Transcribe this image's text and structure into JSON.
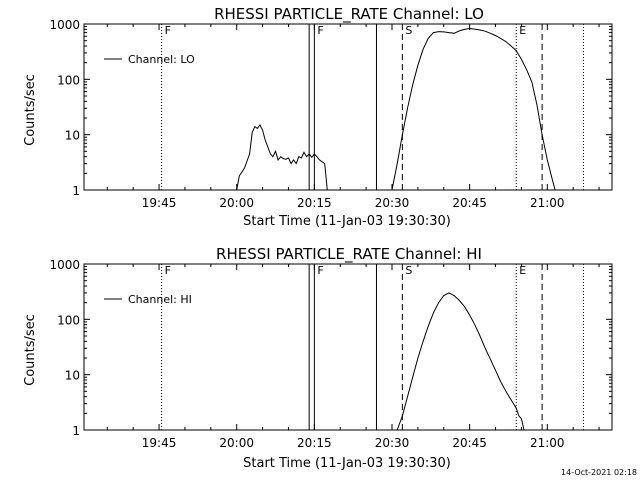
{
  "footer": "14-Oct-2021 02:18",
  "chart_data": [
    {
      "type": "line",
      "title": "RHESSI PARTICLE_RATE Channel: LO",
      "xlabel": "Start Time (11-Jan-03 19:30:30)",
      "ylabel": "Counts/sec",
      "legend": "Channel: LO",
      "legend_position": "top-left",
      "yscale": "log",
      "ylim": [
        1,
        1000
      ],
      "xlim": [
        "19:30:30",
        "21:12:30"
      ],
      "x_ticks": [
        "19:45",
        "20:00",
        "20:15",
        "20:30",
        "20:45",
        "21:00"
      ],
      "y_ticks": [
        "1",
        "10",
        "100",
        "1000"
      ],
      "grid": false,
      "markers": [
        {
          "time": "19:45:30",
          "style": "dotted",
          "label": "F"
        },
        {
          "time": "20:14:00",
          "style": "solid",
          "label": ""
        },
        {
          "time": "20:15:00",
          "style": "solid",
          "label": "F"
        },
        {
          "time": "20:27:00",
          "style": "solid",
          "label": ""
        },
        {
          "time": "20:32:00",
          "style": "dashed",
          "label": "S"
        },
        {
          "time": "20:54:00",
          "style": "dotted",
          "label": "E"
        },
        {
          "time": "20:59:00",
          "style": "dashed",
          "label": ""
        },
        {
          "time": "21:07:00",
          "style": "dotted",
          "label": ""
        }
      ],
      "series": [
        {
          "x": [
            "20:00:00",
            "20:00:30",
            "20:01:30",
            "20:02:30",
            "20:03:00",
            "20:03:30",
            "20:04:00",
            "20:04:30",
            "20:05:00",
            "20:05:30",
            "20:06:00",
            "20:06:30",
            "20:07:00",
            "20:07:30",
            "20:08:00",
            "20:08:30",
            "20:09:00",
            "20:09:30",
            "20:10:00",
            "20:10:30",
            "20:11:00",
            "20:11:30",
            "20:12:00",
            "20:12:30",
            "20:13:00",
            "20:13:30",
            "20:14:00",
            "20:14:30",
            "20:15:00",
            "20:15:30",
            "20:16:00",
            "20:17:00",
            "20:17:30"
          ],
          "values": [
            1,
            1.8,
            2.5,
            4.5,
            11,
            14,
            13,
            15,
            12,
            8,
            6,
            4.5,
            4,
            5,
            3.5,
            4,
            3.7,
            3.6,
            3.8,
            3,
            3.5,
            3,
            4,
            3.8,
            4.8,
            4,
            4.5,
            3.9,
            4.5,
            4,
            3.5,
            3,
            1
          ]
        },
        {
          "x": [
            "20:30:00",
            "20:31:00",
            "20:32:00",
            "20:33:00",
            "20:34:00",
            "20:35:00",
            "20:36:00",
            "20:37:00",
            "20:38:00",
            "20:39:00",
            "20:40:00",
            "20:41:00",
            "20:42:00",
            "20:43:00",
            "20:44:00",
            "20:45:00",
            "20:46:00",
            "20:47:00",
            "20:48:00",
            "20:49:00",
            "20:50:00",
            "20:51:00",
            "20:52:00",
            "20:53:00",
            "20:54:00",
            "20:55:00",
            "20:56:00",
            "20:57:00",
            "20:58:00",
            "20:59:00",
            "21:00:00",
            "21:01:00",
            "21:01:30"
          ],
          "values": [
            1,
            3,
            10,
            30,
            80,
            180,
            350,
            550,
            700,
            730,
            720,
            700,
            680,
            750,
            800,
            830,
            810,
            780,
            740,
            680,
            620,
            550,
            480,
            400,
            330,
            230,
            150,
            90,
            35,
            10,
            3.5,
            1.5,
            1
          ]
        }
      ]
    },
    {
      "type": "line",
      "title": "RHESSI PARTICLE_RATE Channel: HI",
      "xlabel": "Start Time (11-Jan-03 19:30:30)",
      "ylabel": "Counts/sec",
      "legend": "Channel: HI",
      "legend_position": "top-left",
      "yscale": "log",
      "ylim": [
        1,
        1000
      ],
      "xlim": [
        "19:30:30",
        "21:12:30"
      ],
      "x_ticks": [
        "19:45",
        "20:00",
        "20:15",
        "20:30",
        "20:45",
        "21:00"
      ],
      "y_ticks": [
        "1",
        "10",
        "100",
        "1000"
      ],
      "grid": false,
      "markers": [
        {
          "time": "19:45:30",
          "style": "dotted",
          "label": "F"
        },
        {
          "time": "20:14:00",
          "style": "solid",
          "label": ""
        },
        {
          "time": "20:15:00",
          "style": "solid",
          "label": "F"
        },
        {
          "time": "20:27:00",
          "style": "solid",
          "label": ""
        },
        {
          "time": "20:32:00",
          "style": "dashed",
          "label": "S"
        },
        {
          "time": "20:54:00",
          "style": "dotted",
          "label": "E"
        },
        {
          "time": "20:59:00",
          "style": "dashed",
          "label": ""
        },
        {
          "time": "21:07:00",
          "style": "dotted",
          "label": ""
        }
      ],
      "series": [
        {
          "x": [
            "20:31:00",
            "20:32:00",
            "20:33:00",
            "20:34:00",
            "20:35:00",
            "20:36:00",
            "20:37:00",
            "20:38:00",
            "20:39:00",
            "20:40:00",
            "20:41:00",
            "20:42:00",
            "20:43:00",
            "20:44:00",
            "20:45:00",
            "20:46:00",
            "20:47:00",
            "20:48:00",
            "20:49:00",
            "20:50:00",
            "20:51:00",
            "20:52:00",
            "20:53:00",
            "20:54:00",
            "20:54:30",
            "20:55:00",
            "20:55:30"
          ],
          "values": [
            1,
            1.8,
            4,
            9,
            20,
            40,
            75,
            130,
            200,
            270,
            300,
            270,
            220,
            170,
            120,
            80,
            50,
            30,
            19,
            12,
            7.5,
            5,
            3.5,
            2.5,
            1.8,
            1.6,
            1
          ]
        }
      ]
    }
  ]
}
